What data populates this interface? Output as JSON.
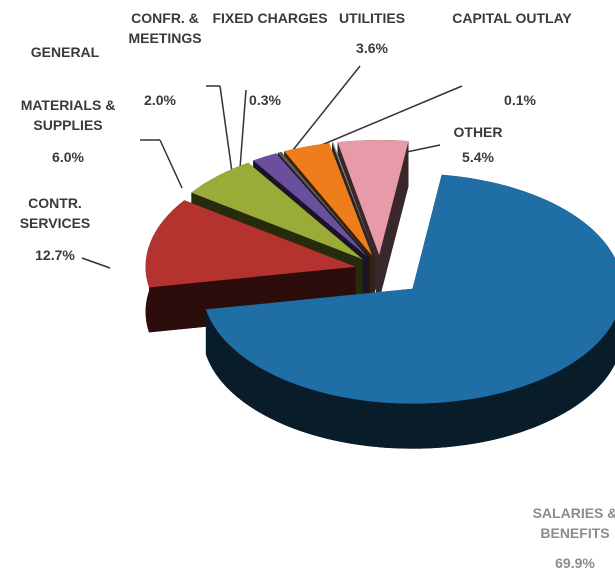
{
  "chart_data": {
    "type": "pie3d",
    "categories": [
      "SALARIES & BENEFITS",
      "CONTR. SERVICES",
      "MATERIALS & SUPPLIES",
      "GENERAL",
      "CONFR. & MEETINGS",
      "FIXED CHARGES",
      "UTILITIES",
      "CAPITAL OUTLAY",
      "OTHER"
    ],
    "values": [
      69.9,
      12.7,
      6.0,
      0,
      2.0,
      0.3,
      3.6,
      0.1,
      5.4
    ],
    "value_labels": [
      "69.9%",
      "12.7%",
      "6.0%",
      null,
      "2.0%",
      "0.3%",
      "3.6%",
      "0.1%",
      "5.4%"
    ],
    "colors": [
      "#1f6ea6",
      "#b5332f",
      "#9aab37",
      "#7a7a7a",
      "#6a4f9e",
      "#5a5a5a",
      "#ef7d1c",
      "#9a9a9a",
      "#e79aa8"
    ]
  }
}
